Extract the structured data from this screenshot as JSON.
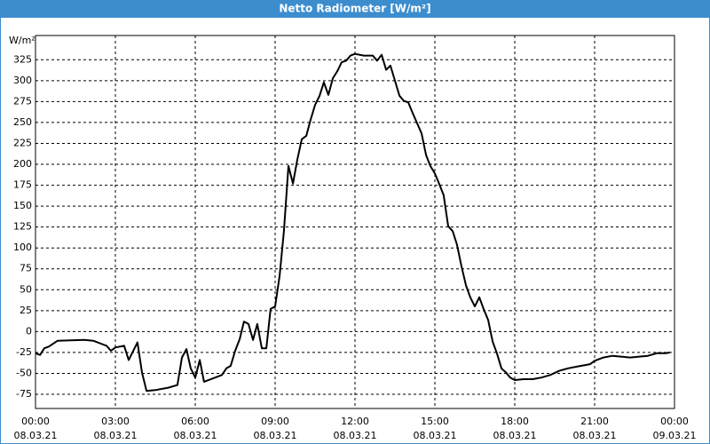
{
  "chart_data": {
    "type": "line",
    "title": "Netto Radiometer [W/m²]",
    "ylabel": "W/m²",
    "x": [
      0,
      0.17,
      0.33,
      0.5,
      0.83,
      1.83,
      2.17,
      2.5,
      2.67,
      2.83,
      3,
      3.33,
      3.5,
      3.83,
      4,
      4.17,
      4.5,
      5,
      5.33,
      5.5,
      5.67,
      5.83,
      6,
      6.17,
      6.33,
      6.67,
      7,
      7.17,
      7.33,
      7.5,
      7.67,
      7.83,
      8,
      8.17,
      8.33,
      8.5,
      8.67,
      8.83,
      9,
      9.17,
      9.33,
      9.5,
      9.67,
      9.83,
      10,
      10.17,
      10.33,
      10.5,
      10.67,
      10.83,
      11,
      11.17,
      11.33,
      11.5,
      11.67,
      11.83,
      12,
      12.33,
      12.67,
      12.83,
      13,
      13.17,
      13.33,
      13.5,
      13.67,
      13.83,
      14,
      14.17,
      14.5,
      14.67,
      14.83,
      15,
      15.17,
      15.33,
      15.5,
      15.67,
      15.83,
      16,
      16.17,
      16.33,
      16.5,
      16.67,
      16.83,
      17,
      17.17,
      17.33,
      17.5,
      17.67,
      17.83,
      18,
      18.33,
      18.67,
      19,
      19.33,
      19.67,
      20,
      20.33,
      20.67,
      20.83,
      21,
      21.33,
      21.67,
      22,
      22.33,
      22.67,
      23,
      23.33,
      23.67,
      23.83
    ],
    "series": [
      {
        "color": "#000000",
        "values": [
          -26,
          -28,
          -20,
          -18,
          -11,
          -10,
          -11,
          -15,
          -17,
          -23,
          -19,
          -17,
          -34,
          -13,
          -49,
          -71,
          -70,
          -67,
          -64,
          -31,
          -21,
          -44,
          -55,
          -34,
          -60,
          -56,
          -52,
          -44,
          -41,
          -23,
          -9,
          12,
          9,
          -10,
          9,
          -20,
          -20,
          27,
          30,
          67,
          120,
          198,
          177,
          205,
          230,
          234,
          253,
          271,
          282,
          298,
          283,
          303,
          311,
          322,
          324,
          330,
          332,
          330,
          330,
          324,
          331,
          313,
          318,
          300,
          282,
          276,
          274,
          261,
          237,
          211,
          198,
          189,
          176,
          163,
          126,
          120,
          104,
          78,
          55,
          41,
          30,
          41,
          27,
          14,
          -12,
          -26,
          -44,
          -49,
          -55,
          -58,
          -57,
          -57,
          -55,
          -52,
          -47,
          -44,
          -42,
          -40,
          -39,
          -35,
          -31,
          -29,
          -30,
          -31,
          -30,
          -29,
          -26,
          -26,
          -25
        ]
      }
    ],
    "xlim": [
      0,
      24
    ],
    "ylim": [
      -92,
      354
    ],
    "xticks": [
      {
        "value": 0,
        "label": "00:00",
        "date": "08.03.21"
      },
      {
        "value": 3,
        "label": "03:00",
        "date": "08.03.21"
      },
      {
        "value": 6,
        "label": "06:00",
        "date": "08.03.21"
      },
      {
        "value": 9,
        "label": "09:00",
        "date": "08.03.21"
      },
      {
        "value": 12,
        "label": "12:00",
        "date": "08.03.21"
      },
      {
        "value": 15,
        "label": "15:00",
        "date": "08.03.21"
      },
      {
        "value": 18,
        "label": "18:00",
        "date": "08.03.21"
      },
      {
        "value": 21,
        "label": "21:00",
        "date": "08.03.21"
      },
      {
        "value": 24,
        "label": "00:00",
        "date": "09.03.21"
      }
    ],
    "yticks": [
      -75,
      -50,
      -25,
      0,
      25,
      50,
      75,
      100,
      125,
      150,
      175,
      200,
      225,
      250,
      275,
      300,
      325
    ],
    "grid": true
  }
}
